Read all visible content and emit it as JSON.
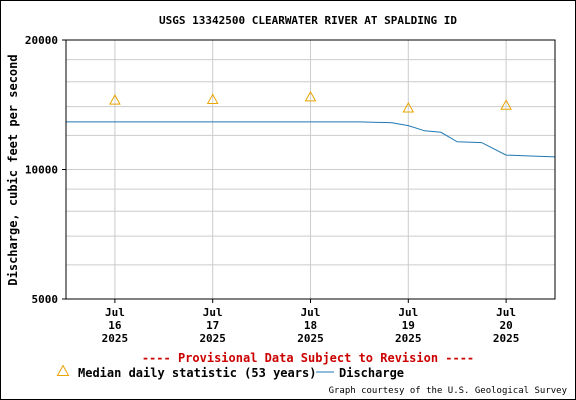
{
  "chart_data": {
    "type": "line",
    "title": "USGS 13342500 CLEARWATER RIVER AT SPALDING ID",
    "ylabel": "Discharge, cubic feet per second",
    "xlabel": "",
    "yscale": "log",
    "ylim": [
      5000,
      20000
    ],
    "yticks": [
      {
        "value": 5000,
        "label": "5000"
      },
      {
        "value": 10000,
        "label": "10000"
      },
      {
        "value": 20000,
        "label": "20000"
      }
    ],
    "xlim": [
      "2025-07-15 12:00",
      "2025-07-20 12:00"
    ],
    "xticks": [
      {
        "x": "2025-07-16 00:00",
        "lines": [
          "Jul",
          "16",
          "2025"
        ]
      },
      {
        "x": "2025-07-17 00:00",
        "lines": [
          "Jul",
          "17",
          "2025"
        ]
      },
      {
        "x": "2025-07-18 00:00",
        "lines": [
          "Jul",
          "18",
          "2025"
        ]
      },
      {
        "x": "2025-07-19 00:00",
        "lines": [
          "Jul",
          "19",
          "2025"
        ]
      },
      {
        "x": "2025-07-20 00:00",
        "lines": [
          "Jul",
          "20",
          "2025"
        ]
      }
    ],
    "grid": true,
    "series": [
      {
        "name": "Discharge",
        "color": "#1f78b4",
        "marker": "line",
        "points": [
          [
            "2025-07-15 12:00",
            12900
          ],
          [
            "2025-07-16 00:00",
            12900
          ],
          [
            "2025-07-16 12:00",
            12900
          ],
          [
            "2025-07-17 00:00",
            12900
          ],
          [
            "2025-07-17 12:00",
            12900
          ],
          [
            "2025-07-18 00:00",
            12900
          ],
          [
            "2025-07-18 12:00",
            12900
          ],
          [
            "2025-07-18 20:00",
            12850
          ],
          [
            "2025-07-19 00:00",
            12650
          ],
          [
            "2025-07-19 04:00",
            12300
          ],
          [
            "2025-07-19 08:00",
            12200
          ],
          [
            "2025-07-19 12:00",
            11600
          ],
          [
            "2025-07-19 18:00",
            11550
          ],
          [
            "2025-07-20 00:00",
            10800
          ],
          [
            "2025-07-20 06:00",
            10750
          ],
          [
            "2025-07-20 12:00",
            10700
          ]
        ]
      },
      {
        "name": "Median daily statistic (53 years)",
        "color": "#e8a400",
        "marker": "triangle",
        "points": [
          [
            "2025-07-16 00:00",
            14500
          ],
          [
            "2025-07-17 00:00",
            14550
          ],
          [
            "2025-07-18 00:00",
            14750
          ],
          [
            "2025-07-19 00:00",
            13900
          ],
          [
            "2025-07-20 00:00",
            14100
          ]
        ]
      }
    ],
    "legend_position": "bottom",
    "provisional_note": "---- Provisional Data Subject to Revision ----",
    "provisional_color": "#cc0000",
    "credit": "Graph courtesy of the U.S. Geological Survey"
  },
  "legend": {
    "median_label": "Median daily statistic (53 years)",
    "discharge_label": "Discharge"
  }
}
